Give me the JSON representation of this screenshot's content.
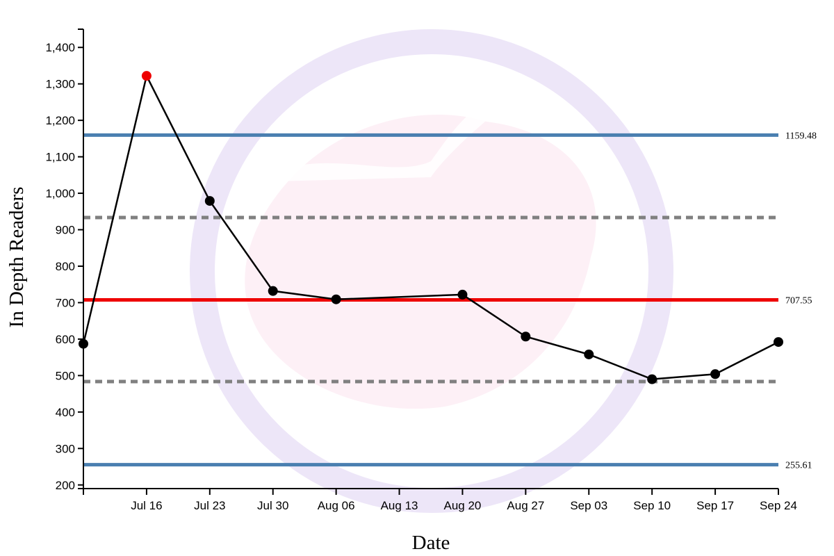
{
  "chart_data": {
    "type": "line",
    "xlabel": "Date",
    "ylabel": "In Depth Readers",
    "x_tick_labels": [
      "Jul 16",
      "Jul 23",
      "Jul 30",
      "Aug 06",
      "Aug 13",
      "Aug 20",
      "Aug 27",
      "Sep 03",
      "Sep 10",
      "Sep 17",
      "Sep 24"
    ],
    "y_ticks": [
      200,
      300,
      400,
      500,
      600,
      700,
      800,
      900,
      1000,
      1100,
      1200,
      1300,
      1400
    ],
    "y_tick_labels": [
      "200",
      "300",
      "400",
      "500",
      "600",
      "700",
      "800",
      "900",
      "1,000",
      "1,100",
      "1,200",
      "1,300",
      "1,400"
    ],
    "ylim": [
      190,
      1450
    ],
    "xlim": [
      "2024-07-09",
      "2024-09-24"
    ],
    "grid": false,
    "series": [
      {
        "x": [
          "2024-07-09",
          "2024-07-16",
          "2024-07-23",
          "2024-07-30",
          "2024-08-06",
          "2024-08-20",
          "2024-08-27",
          "2024-09-03",
          "2024-09-10",
          "2024-09-17",
          "2024-09-24"
        ],
        "values": [
          587,
          1322,
          979,
          732,
          709,
          722,
          607,
          558,
          490,
          504,
          592
        ],
        "color": "#000000"
      }
    ],
    "highlighted_points": [
      {
        "x": "2024-07-16",
        "value": 1322,
        "color": "#ee0000"
      }
    ],
    "reference_lines": [
      {
        "kind": "upper-control-limit",
        "value": 1159.48,
        "label": "1159.48",
        "color": "#4a7fb0"
      },
      {
        "kind": "upper-sigma",
        "value": 933.5,
        "label": "",
        "color": "#808080"
      },
      {
        "kind": "mean",
        "value": 707.55,
        "label": "707.55",
        "color": "#ee0000"
      },
      {
        "kind": "lower-sigma",
        "value": 483.5,
        "label": "",
        "color": "#808080"
      },
      {
        "kind": "lower-control-limit",
        "value": 255.61,
        "label": "255.61",
        "color": "#4a7fb0"
      }
    ],
    "watermark": {
      "ring_color": "#ede6f8",
      "inner_color": "#fdf0f6"
    }
  }
}
